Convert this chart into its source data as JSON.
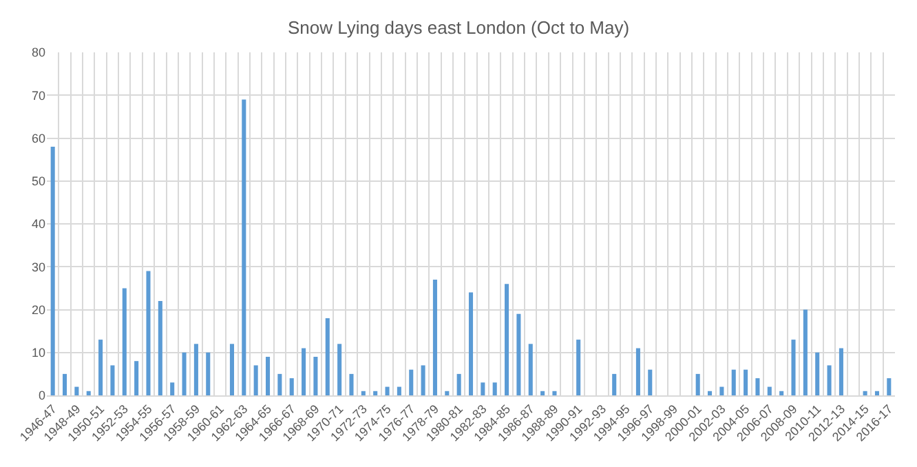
{
  "chart_data": {
    "type": "bar",
    "title": "Snow Lying days east London (Oct to May)",
    "categories": [
      "1946-47",
      null,
      "1948-49",
      null,
      "1950-51",
      null,
      "1952-53",
      null,
      "1954-55",
      null,
      "1956-57",
      null,
      "1958-59",
      null,
      "1960-61",
      null,
      "1962-63",
      null,
      "1964-65",
      null,
      "1966-67",
      null,
      "1968-69",
      null,
      "1970-71",
      null,
      "1972-73",
      null,
      "1974-75",
      null,
      "1976-77",
      null,
      "1978-79",
      null,
      "1980-81",
      null,
      "1982-83",
      null,
      "1984-85",
      null,
      "1986-87",
      null,
      "1988-89",
      null,
      "1990-91",
      null,
      "1992-93",
      null,
      "1994-95",
      null,
      "1996-97",
      null,
      "1998-99",
      null,
      "2000-01",
      null,
      "2002-03",
      null,
      "2004-05",
      null,
      "2006-07",
      null,
      "2008-09",
      null,
      "2010-11",
      null,
      "2012-13",
      null,
      "2014-15",
      null,
      "2016-17"
    ],
    "values": [
      58,
      5,
      2,
      1,
      13,
      7,
      25,
      8,
      29,
      22,
      3,
      10,
      12,
      10,
      0,
      12,
      69,
      7,
      9,
      5,
      4,
      11,
      9,
      18,
      12,
      5,
      1,
      1,
      2,
      2,
      6,
      7,
      27,
      1,
      5,
      24,
      3,
      3,
      26,
      19,
      12,
      1,
      1,
      0,
      13,
      0,
      0,
      5,
      0,
      11,
      6,
      0,
      0,
      0,
      5,
      1,
      2,
      6,
      6,
      4,
      2,
      1,
      13,
      20,
      10,
      7,
      11,
      0,
      1,
      1,
      4
    ],
    "color": "#5b9bd5",
    "ylim": [
      0,
      80
    ],
    "yticks": [
      0,
      10,
      20,
      30,
      40,
      50,
      60,
      70,
      80
    ],
    "grid": true
  }
}
